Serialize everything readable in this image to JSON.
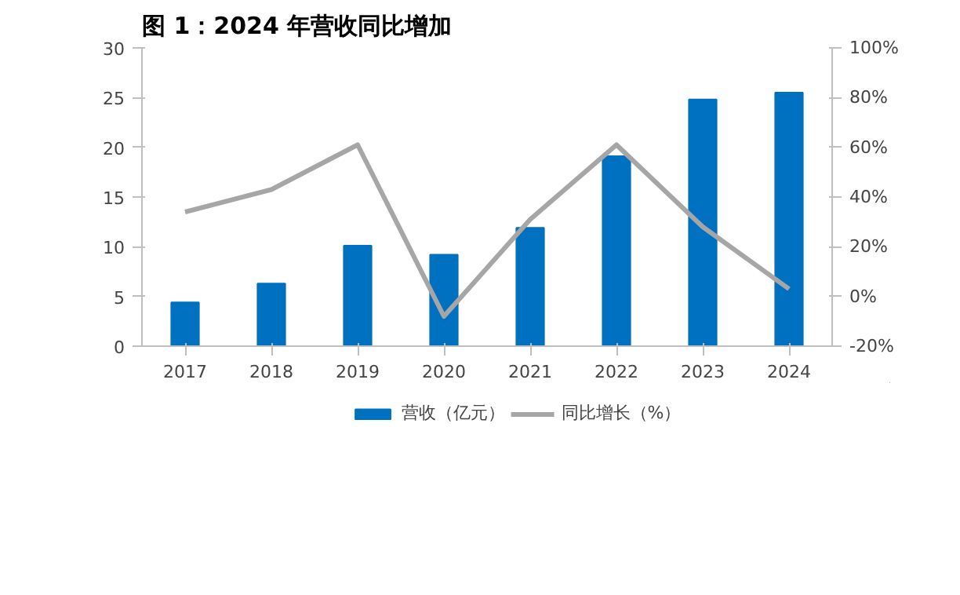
{
  "chart_data": {
    "type": "bar",
    "title": "图 1：2024 年营收同比增加",
    "categories": [
      "2017",
      "2018",
      "2019",
      "2020",
      "2021",
      "2022",
      "2023",
      "2024"
    ],
    "series": [
      {
        "name": "营收（亿元）",
        "color": "#0070c0",
        "values": [
          4.4,
          6.3,
          10.1,
          9.2,
          11.9,
          19.1,
          24.8,
          25.5
        ]
      },
      {
        "name": "同比增长（%）",
        "type": "line",
        "axis": "y2",
        "color": "#a6a6a6",
        "values": [
          34,
          43,
          61,
          -8,
          31,
          61,
          28,
          3
        ]
      }
    ],
    "ylim": [
      0,
      30
    ],
    "yticks": [
      0,
      5,
      10,
      15,
      20,
      25,
      30
    ],
    "y2lim": [
      -20,
      100
    ],
    "y2ticks": [
      {
        "value": -20,
        "label": "-20%"
      },
      {
        "value": 0,
        "label": "0%"
      },
      {
        "value": 20,
        "label": "20%"
      },
      {
        "value": 40,
        "label": "40%"
      },
      {
        "value": 60,
        "label": "60%"
      },
      {
        "value": 80,
        "label": "80%"
      },
      {
        "value": 100,
        "label": "100%"
      }
    ],
    "legend": "bottom",
    "grid": false
  }
}
